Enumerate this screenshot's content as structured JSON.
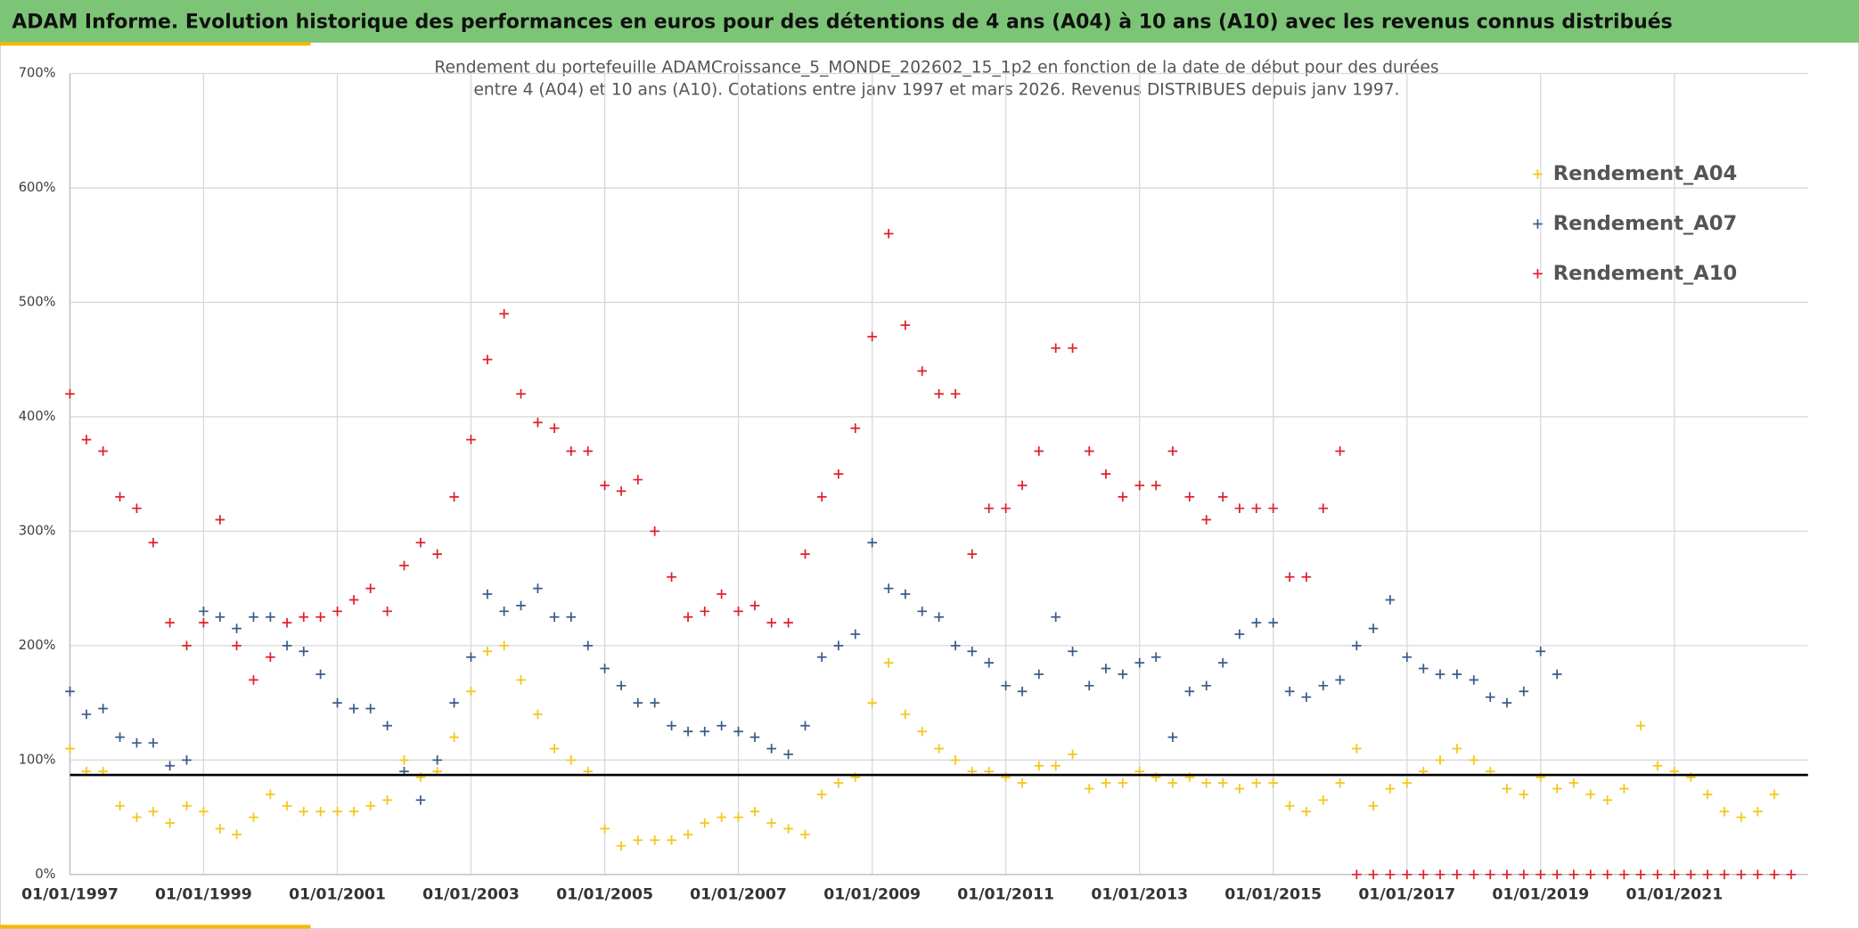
{
  "header": {
    "title": "ADAM Informe. Evolution historique des performances en euros pour des détentions de 4 ans (A04) à 10 ans (A10) avec les revenus connus distribués"
  },
  "chart_data": {
    "type": "scatter",
    "title_lines": [
      "Rendement du portefeuille ADAMCroissance_5_MONDE_202602_15_1p2  en fonction de la date de début pour des durées",
      "entre 4 (A04) et 10 ans (A10). Cotations entre janv 1997 et mars 2026. Revenus DISTRIBUES depuis janv 1997."
    ],
    "x": [
      "1997-01-01",
      "1997-04-01",
      "1997-07-01",
      "1997-10-01",
      "1998-01-01",
      "1998-04-01",
      "1998-07-01",
      "1998-10-01",
      "1999-01-01",
      "1999-04-01",
      "1999-07-01",
      "1999-10-01",
      "2000-01-01",
      "2000-04-01",
      "2000-07-01",
      "2000-10-01",
      "2001-01-01",
      "2001-04-01",
      "2001-07-01",
      "2001-10-01",
      "2002-01-01",
      "2002-04-01",
      "2002-07-01",
      "2002-10-01",
      "2003-01-01",
      "2003-04-01",
      "2003-07-01",
      "2003-10-01",
      "2004-01-01",
      "2004-04-01",
      "2004-07-01",
      "2004-10-01",
      "2005-01-01",
      "2005-04-01",
      "2005-07-01",
      "2005-10-01",
      "2006-01-01",
      "2006-04-01",
      "2006-07-01",
      "2006-10-01",
      "2007-01-01",
      "2007-04-01",
      "2007-07-01",
      "2007-10-01",
      "2008-01-01",
      "2008-04-01",
      "2008-07-01",
      "2008-10-01",
      "2009-01-01",
      "2009-04-01",
      "2009-07-01",
      "2009-10-01",
      "2010-01-01",
      "2010-04-01",
      "2010-07-01",
      "2010-10-01",
      "2011-01-01",
      "2011-04-01",
      "2011-07-01",
      "2011-10-01",
      "2012-01-01",
      "2012-04-01",
      "2012-07-01",
      "2012-10-01",
      "2013-01-01",
      "2013-04-01",
      "2013-07-01",
      "2013-10-01",
      "2014-01-01",
      "2014-04-01",
      "2014-07-01",
      "2014-10-01",
      "2015-01-01",
      "2015-04-01",
      "2015-07-01",
      "2015-10-01",
      "2016-01-01",
      "2016-04-01",
      "2016-07-01",
      "2016-10-01",
      "2017-01-01",
      "2017-04-01",
      "2017-07-01",
      "2017-10-01",
      "2018-01-01",
      "2018-04-01",
      "2018-07-01",
      "2018-10-01",
      "2019-01-01",
      "2019-04-01",
      "2019-07-01",
      "2019-10-01",
      "2020-01-01",
      "2020-04-01",
      "2020-07-01",
      "2020-10-01",
      "2021-01-01",
      "2021-04-01",
      "2021-07-01",
      "2021-10-01",
      "2022-01-01",
      "2022-04-01",
      "2022-07-01",
      "2022-10-01"
    ],
    "series": [
      {
        "name": "Rendement_A04",
        "color": "#f5c518",
        "values": [
          110,
          90,
          90,
          60,
          50,
          55,
          45,
          60,
          55,
          40,
          35,
          50,
          70,
          60,
          55,
          55,
          55,
          55,
          60,
          65,
          100,
          85,
          90,
          120,
          160,
          195,
          200,
          170,
          140,
          110,
          100,
          90,
          40,
          25,
          30,
          30,
          30,
          35,
          45,
          50,
          50,
          55,
          45,
          40,
          35,
          70,
          80,
          85,
          150,
          185,
          140,
          125,
          110,
          100,
          90,
          90,
          85,
          80,
          95,
          95,
          105,
          75,
          80,
          80,
          90,
          85,
          80,
          85,
          80,
          80,
          75,
          80,
          80,
          60,
          55,
          65,
          80,
          110,
          60,
          75,
          80,
          90,
          100,
          110,
          100,
          90,
          75,
          70,
          85,
          75,
          80,
          70,
          65,
          75,
          130,
          95,
          90,
          85,
          70,
          55,
          50,
          55,
          70,
          null
        ]
      },
      {
        "name": "Rendement_A07",
        "color": "#3c5a8a",
        "values": [
          160,
          140,
          145,
          120,
          115,
          115,
          95,
          100,
          230,
          225,
          215,
          225,
          225,
          200,
          195,
          175,
          150,
          145,
          145,
          130,
          90,
          65,
          100,
          150,
          190,
          245,
          230,
          235,
          250,
          225,
          225,
          200,
          180,
          165,
          150,
          150,
          130,
          125,
          125,
          130,
          125,
          120,
          110,
          105,
          130,
          190,
          200,
          210,
          290,
          250,
          245,
          230,
          225,
          200,
          195,
          185,
          165,
          160,
          175,
          225,
          195,
          165,
          180,
          175,
          185,
          190,
          120,
          160,
          165,
          185,
          210,
          220,
          220,
          160,
          155,
          165,
          170,
          200,
          215,
          240,
          190,
          180,
          175,
          175,
          170,
          155,
          150,
          160,
          195,
          175,
          null,
          null,
          null,
          null,
          null,
          null,
          null,
          null,
          null,
          null,
          null,
          null,
          null,
          null
        ]
      },
      {
        "name": "Rendement_A10",
        "color": "#e0202a",
        "values": [
          420,
          380,
          370,
          330,
          320,
          290,
          220,
          200,
          220,
          310,
          200,
          170,
          190,
          220,
          225,
          225,
          230,
          240,
          250,
          230,
          270,
          290,
          280,
          330,
          380,
          450,
          490,
          420,
          395,
          390,
          370,
          370,
          340,
          335,
          345,
          300,
          260,
          225,
          230,
          245,
          230,
          235,
          220,
          220,
          280,
          330,
          350,
          390,
          470,
          560,
          480,
          440,
          420,
          420,
          280,
          320,
          320,
          340,
          370,
          460,
          460,
          370,
          350,
          330,
          340,
          340,
          370,
          330,
          310,
          330,
          320,
          320,
          320,
          260,
          260,
          320,
          370,
          0,
          0,
          0,
          0,
          0,
          0,
          0,
          0,
          0,
          0,
          0,
          0,
          0,
          0,
          0,
          0,
          0,
          0,
          0,
          0,
          0,
          0,
          0,
          0,
          0,
          0,
          0
        ]
      }
    ],
    "reference_line": 87,
    "reference_color": "#000000",
    "xlim": [
      "1997-01-01",
      "2023-01-01"
    ],
    "xticks": [
      {
        "value": "1997-01-01",
        "label": "01/01/1997"
      },
      {
        "value": "1999-01-01",
        "label": "01/01/1999"
      },
      {
        "value": "2001-01-01",
        "label": "01/01/2001"
      },
      {
        "value": "2003-01-01",
        "label": "01/01/2003"
      },
      {
        "value": "2005-01-01",
        "label": "01/01/2005"
      },
      {
        "value": "2007-01-01",
        "label": "01/01/2007"
      },
      {
        "value": "2009-01-01",
        "label": "01/01/2009"
      },
      {
        "value": "2011-01-01",
        "label": "01/01/2011"
      },
      {
        "value": "2013-01-01",
        "label": "01/01/2013"
      },
      {
        "value": "2015-01-01",
        "label": "01/01/2015"
      },
      {
        "value": "2017-01-01",
        "label": "01/01/2017"
      },
      {
        "value": "2019-01-01",
        "label": "01/01/2019"
      },
      {
        "value": "2021-01-01",
        "label": "01/01/2021"
      }
    ],
    "ylim": [
      0,
      700
    ],
    "yticks": [
      {
        "value": 0,
        "label": "0%"
      },
      {
        "value": 100,
        "label": "100%"
      },
      {
        "value": 200,
        "label": "200%"
      },
      {
        "value": 300,
        "label": "300%"
      },
      {
        "value": 400,
        "label": "400%"
      },
      {
        "value": 500,
        "label": "500%"
      },
      {
        "value": 600,
        "label": "600%"
      },
      {
        "value": 700,
        "label": "700%"
      }
    ],
    "grid": true,
    "legend": "upper right"
  }
}
